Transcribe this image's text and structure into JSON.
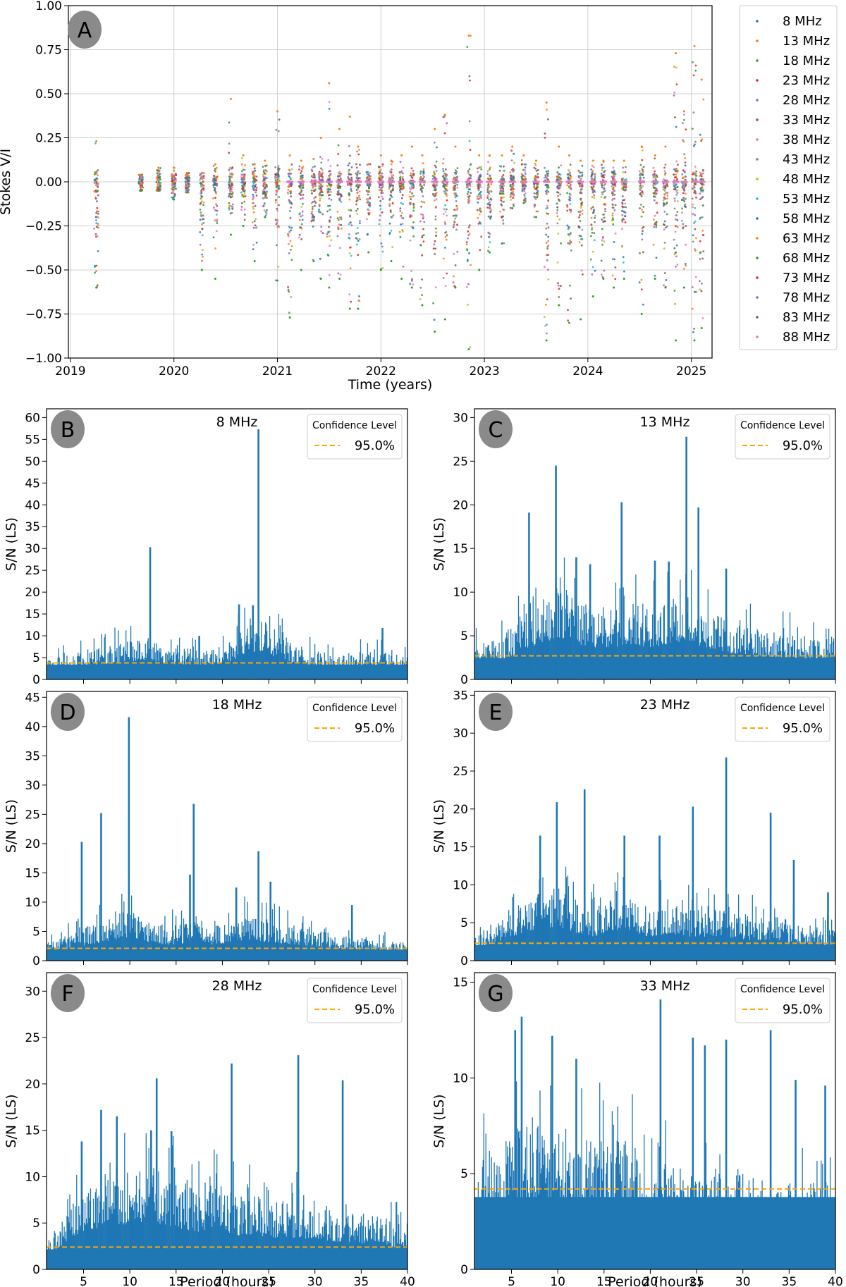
{
  "figure": {
    "panel_a_letter": "A",
    "panels_letters": [
      "B",
      "C",
      "D",
      "E",
      "F",
      "G"
    ]
  },
  "colors": {
    "series": [
      "#1f77b4",
      "#ff7f0e",
      "#2ca02c",
      "#d62728",
      "#9467bd",
      "#8c564b",
      "#e377c2",
      "#7f7f7f",
      "#bcbd22",
      "#17becf",
      "#1f77b4",
      "#ff7f0e",
      "#2ca02c",
      "#d62728",
      "#9467bd",
      "#8c564b",
      "#e377c2"
    ],
    "bar": "#1f77b4",
    "confidence": "#ffa500",
    "letter_badge": "#8a8a8a"
  },
  "chart_data": [
    {
      "id": "A",
      "type": "scatter",
      "title": "",
      "xlabel": "Time (years)",
      "ylabel": "Stokes V/I",
      "xlim": [
        2018.98,
        2025.2
      ],
      "ylim": [
        -1.0,
        1.0
      ],
      "xticks": [
        2019,
        2020,
        2021,
        2022,
        2023,
        2024,
        2025
      ],
      "xtick_labels": [
        "2019",
        "2020",
        "2021",
        "2022",
        "2023",
        "2024",
        "2025"
      ],
      "yticks": [
        -1.0,
        -0.75,
        -0.5,
        -0.25,
        0.0,
        0.25,
        0.5,
        0.75,
        1.0
      ],
      "ytick_labels": [
        "−1.00",
        "−0.75",
        "−0.50",
        "−0.25",
        "0.00",
        "0.25",
        "0.50",
        "0.75",
        "1.00"
      ],
      "grid": true,
      "legend_position": "outside-right",
      "series_names": [
        "8 MHz",
        "13 MHz",
        "18 MHz",
        "23 MHz",
        "28 MHz",
        "33 MHz",
        "38 MHz",
        "43 MHz",
        "48 MHz",
        "53 MHz",
        "58 MHz",
        "63 MHz",
        "68 MHz",
        "73 MHz",
        "78 MHz",
        "83 MHz",
        "88 MHz"
      ],
      "observation_epochs": [
        {
          "t": 2019.25,
          "min": -0.6,
          "max": 0.23
        },
        {
          "t": 2019.68,
          "min": -0.05,
          "max": 0.04
        },
        {
          "t": 2019.85,
          "min": -0.05,
          "max": 0.08
        },
        {
          "t": 2020.0,
          "min": -0.1,
          "max": 0.08
        },
        {
          "t": 2020.13,
          "min": -0.06,
          "max": 0.05
        },
        {
          "t": 2020.27,
          "min": -0.5,
          "max": 0.05
        },
        {
          "t": 2020.4,
          "min": -0.55,
          "max": 0.1
        },
        {
          "t": 2020.55,
          "min": -0.3,
          "max": 0.47
        },
        {
          "t": 2020.67,
          "min": -0.25,
          "max": 0.15
        },
        {
          "t": 2020.78,
          "min": -0.45,
          "max": 0.1
        },
        {
          "t": 2020.88,
          "min": -0.2,
          "max": 0.12
        },
        {
          "t": 2021.0,
          "min": -0.56,
          "max": 0.4
        },
        {
          "t": 2021.12,
          "min": -0.77,
          "max": 0.15
        },
        {
          "t": 2021.23,
          "min": -0.5,
          "max": 0.12
        },
        {
          "t": 2021.35,
          "min": -0.45,
          "max": 0.13
        },
        {
          "t": 2021.42,
          "min": -0.55,
          "max": 0.25
        },
        {
          "t": 2021.5,
          "min": -0.6,
          "max": 0.56
        },
        {
          "t": 2021.6,
          "min": -0.55,
          "max": 0.3
        },
        {
          "t": 2021.7,
          "min": -0.72,
          "max": 0.37
        },
        {
          "t": 2021.78,
          "min": -0.72,
          "max": 0.2
        },
        {
          "t": 2021.88,
          "min": -0.4,
          "max": 0.1
        },
        {
          "t": 2022.0,
          "min": -0.5,
          "max": 0.15
        },
        {
          "t": 2022.1,
          "min": -0.45,
          "max": 0.12
        },
        {
          "t": 2022.2,
          "min": -0.55,
          "max": 0.15
        },
        {
          "t": 2022.3,
          "min": -0.6,
          "max": 0.2
        },
        {
          "t": 2022.4,
          "min": -0.7,
          "max": 0.15
        },
        {
          "t": 2022.52,
          "min": -0.85,
          "max": 0.3
        },
        {
          "t": 2022.62,
          "min": -0.78,
          "max": 0.38
        },
        {
          "t": 2022.72,
          "min": -0.6,
          "max": 0.2
        },
        {
          "t": 2022.85,
          "min": -0.95,
          "max": 0.83
        },
        {
          "t": 2022.95,
          "min": -0.5,
          "max": 0.15
        },
        {
          "t": 2023.05,
          "min": -0.4,
          "max": 0.15
        },
        {
          "t": 2023.17,
          "min": -0.35,
          "max": 0.15
        },
        {
          "t": 2023.27,
          "min": -0.15,
          "max": 0.2
        },
        {
          "t": 2023.38,
          "min": -0.12,
          "max": 0.15
        },
        {
          "t": 2023.5,
          "min": -0.2,
          "max": 0.12
        },
        {
          "t": 2023.6,
          "min": -0.9,
          "max": 0.45
        },
        {
          "t": 2023.72,
          "min": -0.7,
          "max": 0.2
        },
        {
          "t": 2023.82,
          "min": -0.8,
          "max": 0.15
        },
        {
          "t": 2023.93,
          "min": -0.78,
          "max": 0.12
        },
        {
          "t": 2024.05,
          "min": -0.65,
          "max": 0.12
        },
        {
          "t": 2024.15,
          "min": -0.55,
          "max": 0.12
        },
        {
          "t": 2024.25,
          "min": -0.6,
          "max": 0.12
        },
        {
          "t": 2024.35,
          "min": -0.55,
          "max": 0.12
        },
        {
          "t": 2024.52,
          "min": -0.75,
          "max": 0.2
        },
        {
          "t": 2024.65,
          "min": -0.55,
          "max": 0.15
        },
        {
          "t": 2024.75,
          "min": -0.6,
          "max": 0.2
        },
        {
          "t": 2024.85,
          "min": -0.9,
          "max": 0.73
        },
        {
          "t": 2024.93,
          "min": -0.6,
          "max": 0.4
        },
        {
          "t": 2025.03,
          "min": -0.9,
          "max": 0.77
        },
        {
          "t": 2025.1,
          "min": -0.83,
          "max": 0.58
        }
      ]
    },
    {
      "id": "B",
      "type": "bar",
      "title": "8 MHz",
      "xlabel": "",
      "ylabel": "S/N (LS)",
      "xlim": [
        1,
        40
      ],
      "ylim": [
        0,
        62
      ],
      "yticks": [
        0,
        5,
        10,
        15,
        20,
        25,
        30,
        35,
        40,
        45,
        50,
        55,
        60
      ],
      "xticks": [
        5,
        10,
        15,
        20,
        25,
        30,
        35,
        40
      ],
      "legend_title": "Confidence Level",
      "legend_entry": "95.0%",
      "confidence_level": 3.8,
      "profile": [
        [
          1,
          4.5
        ],
        [
          5,
          6.5
        ],
        [
          8,
          8
        ],
        [
          10,
          9
        ],
        [
          12,
          10
        ],
        [
          14,
          8
        ],
        [
          17,
          7
        ],
        [
          20,
          8
        ],
        [
          22,
          11
        ],
        [
          24,
          14
        ],
        [
          26,
          11
        ],
        [
          28,
          8
        ],
        [
          30,
          6.5
        ],
        [
          33,
          6
        ],
        [
          36,
          7
        ],
        [
          40,
          6
        ]
      ],
      "peaks": [
        [
          12.2,
          30.3
        ],
        [
          23.9,
          57.3
        ],
        [
          21.8,
          17.2
        ],
        [
          23.3,
          17
        ],
        [
          26.5,
          10.8
        ],
        [
          37.3,
          11.8
        ],
        [
          17.5,
          10
        ]
      ]
    },
    {
      "id": "C",
      "type": "bar",
      "title": "13 MHz",
      "xlabel": "",
      "ylabel": "S/N (LS)",
      "xlim": [
        1,
        40
      ],
      "ylim": [
        0,
        31
      ],
      "yticks": [
        0,
        5,
        10,
        15,
        20,
        25,
        30
      ],
      "xticks": [
        5,
        10,
        15,
        20,
        25,
        30,
        35,
        40
      ],
      "legend_title": "Confidence Level",
      "legend_entry": "95.0%",
      "confidence_level": 2.7,
      "profile": [
        [
          1,
          4
        ],
        [
          4,
          5
        ],
        [
          6,
          7
        ],
        [
          8,
          9
        ],
        [
          10,
          10.5
        ],
        [
          12,
          9
        ],
        [
          14,
          8
        ],
        [
          16,
          8
        ],
        [
          18,
          9
        ],
        [
          20,
          8
        ],
        [
          22,
          9
        ],
        [
          24,
          10
        ],
        [
          26,
          8
        ],
        [
          28,
          7
        ],
        [
          31,
          6
        ],
        [
          35,
          5.5
        ],
        [
          40,
          5
        ]
      ],
      "peaks": [
        [
          6.9,
          19.1
        ],
        [
          9.8,
          24.5
        ],
        [
          16.9,
          20.3
        ],
        [
          23.9,
          27.8
        ],
        [
          25.2,
          19.7
        ],
        [
          12,
          14
        ],
        [
          20.5,
          13.6
        ],
        [
          28.2,
          12.7
        ],
        [
          13.5,
          13.2
        ],
        [
          22,
          13.5
        ]
      ]
    },
    {
      "id": "D",
      "type": "bar",
      "title": "18 MHz",
      "xlabel": "",
      "ylabel": "S/N (LS)",
      "xlim": [
        1,
        40
      ],
      "ylim": [
        0,
        46
      ],
      "yticks": [
        0,
        5,
        10,
        15,
        20,
        25,
        30,
        35,
        40,
        45
      ],
      "xticks": [
        5,
        10,
        15,
        20,
        25,
        30,
        35,
        40
      ],
      "legend_title": "Confidence Level",
      "legend_entry": "95.0%",
      "confidence_level": 2.1,
      "profile": [
        [
          1,
          3
        ],
        [
          4,
          5
        ],
        [
          7,
          7
        ],
        [
          10,
          9
        ],
        [
          12,
          7
        ],
        [
          14,
          6
        ],
        [
          16,
          6.5
        ],
        [
          17,
          8
        ],
        [
          19,
          6
        ],
        [
          21,
          7
        ],
        [
          23,
          8
        ],
        [
          25,
          7
        ],
        [
          28,
          6
        ],
        [
          31,
          5
        ],
        [
          35,
          4
        ],
        [
          40,
          3
        ]
      ],
      "peaks": [
        [
          4.8,
          20.3
        ],
        [
          6.9,
          25.2
        ],
        [
          9.9,
          41.6
        ],
        [
          16.9,
          26.8
        ],
        [
          23.9,
          18.7
        ],
        [
          16.5,
          14.7
        ],
        [
          25.2,
          13.5
        ],
        [
          21.5,
          12.5
        ],
        [
          34,
          9.5
        ]
      ]
    },
    {
      "id": "E",
      "type": "bar",
      "title": "23 MHz",
      "xlabel": "",
      "ylabel": "S/N (LS)",
      "xlim": [
        1,
        40
      ],
      "ylim": [
        0,
        35.5
      ],
      "yticks": [
        0,
        5,
        10,
        15,
        20,
        25,
        30,
        35
      ],
      "xticks": [
        5,
        10,
        15,
        20,
        25,
        30,
        35,
        40
      ],
      "legend_title": "Confidence Level",
      "legend_entry": "95.0%",
      "confidence_level": 2.3,
      "profile": [
        [
          1,
          3
        ],
        [
          4,
          6
        ],
        [
          6,
          8
        ],
        [
          8,
          9
        ],
        [
          10,
          10
        ],
        [
          12,
          8
        ],
        [
          14,
          7
        ],
        [
          16,
          9
        ],
        [
          18,
          8
        ],
        [
          20,
          7
        ],
        [
          22,
          8
        ],
        [
          24,
          7
        ],
        [
          26,
          7
        ],
        [
          28,
          7
        ],
        [
          30,
          6
        ],
        [
          33,
          6
        ],
        [
          36,
          5
        ],
        [
          40,
          4
        ]
      ],
      "peaks": [
        [
          8.1,
          16.5
        ],
        [
          9.9,
          20.9
        ],
        [
          12.9,
          22.6
        ],
        [
          17.2,
          16.5
        ],
        [
          21,
          16.5
        ],
        [
          24.6,
          20.3
        ],
        [
          28.2,
          26.8
        ],
        [
          33,
          19.5
        ],
        [
          35.5,
          13.3
        ],
        [
          39.2,
          9
        ]
      ]
    },
    {
      "id": "F",
      "type": "bar",
      "title": "28 MHz",
      "xlabel": "Period (hours)",
      "ylabel": "S/N (LS)",
      "xlim": [
        1,
        40
      ],
      "ylim": [
        0,
        32
      ],
      "yticks": [
        0,
        5,
        10,
        15,
        20,
        25,
        30
      ],
      "xticks": [
        5,
        10,
        15,
        20,
        25,
        30,
        35,
        40
      ],
      "legend_title": "Confidence Level",
      "legend_entry": "95.0%",
      "confidence_level": 2.4,
      "profile": [
        [
          1,
          3
        ],
        [
          3,
          6
        ],
        [
          5,
          9
        ],
        [
          7,
          10
        ],
        [
          10,
          11
        ],
        [
          13,
          11
        ],
        [
          15,
          10
        ],
        [
          17,
          9
        ],
        [
          20,
          9
        ],
        [
          22,
          8
        ],
        [
          24,
          8
        ],
        [
          26,
          7.5
        ],
        [
          28,
          7.5
        ],
        [
          30,
          7
        ],
        [
          33,
          6.5
        ],
        [
          36,
          6
        ],
        [
          40,
          5
        ]
      ],
      "peaks": [
        [
          4.8,
          13.8
        ],
        [
          6.9,
          17.2
        ],
        [
          8.6,
          16.5
        ],
        [
          12.9,
          20.6
        ],
        [
          14.5,
          14.9
        ],
        [
          21,
          22.2
        ],
        [
          28.2,
          23.1
        ],
        [
          33,
          20.4
        ],
        [
          12.3,
          15
        ]
      ]
    },
    {
      "id": "G",
      "type": "bar",
      "title": "33 MHz",
      "xlabel": "Period (hours)",
      "ylabel": "S/N (LS)",
      "xlim": [
        1,
        40
      ],
      "ylim": [
        0,
        15.5
      ],
      "yticks": [
        0,
        5,
        10,
        15
      ],
      "xticks": [
        5,
        10,
        15,
        20,
        25,
        30,
        35,
        40
      ],
      "legend_title": "Confidence Level",
      "legend_entry": "95.0%",
      "confidence_level": 4.2,
      "profile": [
        [
          1,
          5
        ],
        [
          3,
          6.5
        ],
        [
          5,
          7.5
        ],
        [
          7,
          7.5
        ],
        [
          10,
          7.5
        ],
        [
          13,
          7
        ],
        [
          16,
          7
        ],
        [
          18.5,
          6.5
        ],
        [
          19,
          5
        ],
        [
          21,
          5.5
        ],
        [
          24,
          5.5
        ],
        [
          27,
          5
        ],
        [
          30,
          5
        ],
        [
          33,
          4.5
        ],
        [
          36,
          4.5
        ],
        [
          40,
          4
        ]
      ],
      "peaks": [
        [
          5.4,
          12.5
        ],
        [
          6.1,
          13.2
        ],
        [
          9.4,
          12.2
        ],
        [
          21.1,
          14.1
        ],
        [
          24.6,
          12.1
        ],
        [
          25.9,
          11.7
        ],
        [
          28.2,
          12
        ],
        [
          33,
          12.5
        ],
        [
          35.7,
          9.9
        ],
        [
          38.9,
          9.6
        ],
        [
          12,
          11
        ]
      ]
    }
  ]
}
